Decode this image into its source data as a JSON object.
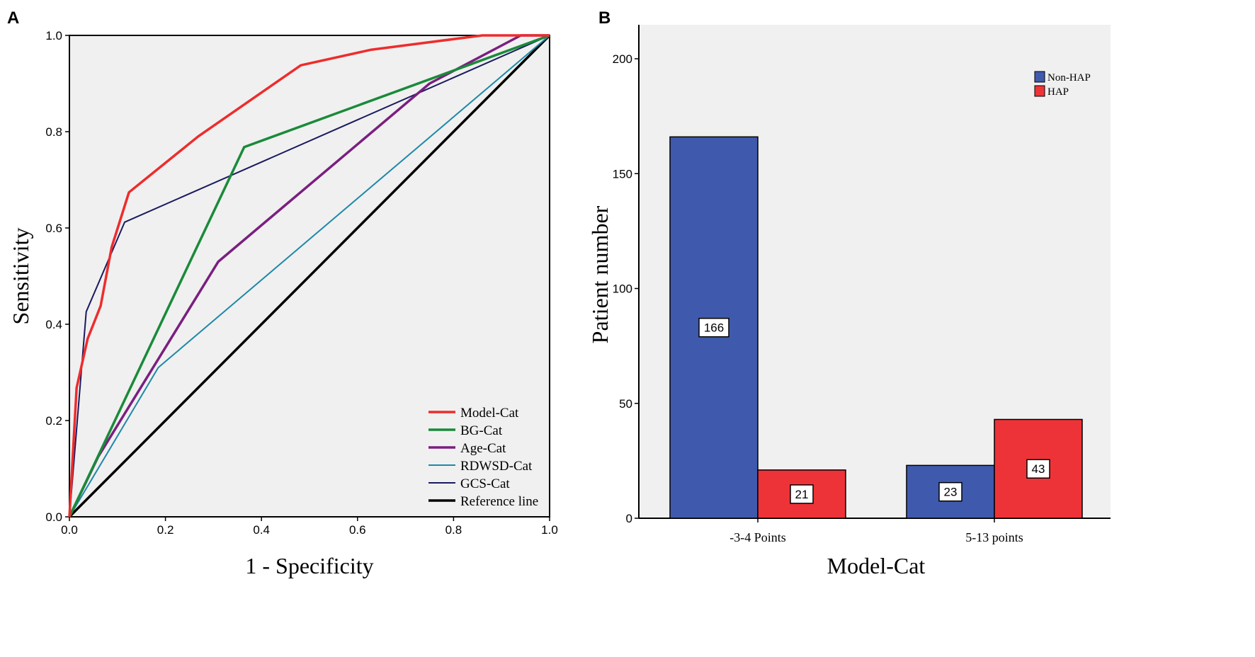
{
  "chart_data": [
    {
      "panel": "A",
      "type": "line",
      "xlabel": "1 - Specificity",
      "ylabel": "Sensitivity",
      "xlim": [
        0,
        1
      ],
      "ylim": [
        0,
        1
      ],
      "xticks": [
        "0.0",
        "0.2",
        "0.4",
        "0.6",
        "0.8",
        "1.0"
      ],
      "yticks": [
        "0.0",
        "0.2",
        "0.4",
        "0.6",
        "0.8",
        "1.0"
      ],
      "legend_position": "bottom-right",
      "background": "#f0f0f0",
      "series": [
        {
          "name": "Model-Cat",
          "color": "#ee2c2c",
          "width": 3.5,
          "points": [
            [
              0,
              0
            ],
            [
              0.015,
              0.268
            ],
            [
              0.038,
              0.37
            ],
            [
              0.065,
              0.438
            ],
            [
              0.088,
              0.56
            ],
            [
              0.124,
              0.674
            ],
            [
              0.268,
              0.79
            ],
            [
              0.482,
              0.938
            ],
            [
              0.627,
              0.97
            ],
            [
              0.86,
              1.0
            ],
            [
              1,
              1
            ]
          ]
        },
        {
          "name": "BG-Cat",
          "color": "#1a8a3a",
          "width": 3.5,
          "points": [
            [
              0,
              0
            ],
            [
              0.364,
              0.768
            ],
            [
              1,
              1
            ]
          ]
        },
        {
          "name": "Age-Cat",
          "color": "#7a1f7f",
          "width": 3.5,
          "points": [
            [
              0,
              0
            ],
            [
              0.06,
              0.125
            ],
            [
              0.31,
              0.53
            ],
            [
              0.75,
              0.9
            ],
            [
              0.94,
              1.0
            ],
            [
              1,
              1
            ]
          ]
        },
        {
          "name": "RDWSD-Cat",
          "color": "#1f88a8",
          "width": 2,
          "points": [
            [
              0,
              0
            ],
            [
              0.185,
              0.31
            ],
            [
              1,
              1
            ]
          ]
        },
        {
          "name": "GCS-Cat",
          "color": "#1a1a60",
          "width": 2,
          "points": [
            [
              0,
              0
            ],
            [
              0.035,
              0.426
            ],
            [
              0.115,
              0.612
            ],
            [
              1,
              1
            ]
          ]
        },
        {
          "name": "Reference line",
          "color": "#000000",
          "width": 3.5,
          "points": [
            [
              0,
              0
            ],
            [
              1,
              1
            ]
          ]
        }
      ]
    },
    {
      "panel": "B",
      "type": "bar",
      "xlabel": "Model-Cat",
      "ylabel": "Patient number",
      "categories": [
        "-3-4 Points",
        "5-13 points"
      ],
      "ylim": [
        0,
        214
      ],
      "yticks": [
        "0",
        "50",
        "100",
        "150",
        "200"
      ],
      "legend_position": "top-right",
      "background": "#f0f0f0",
      "series": [
        {
          "name": "Non-HAP",
          "color": "#3f5aad",
          "values": [
            166,
            23
          ]
        },
        {
          "name": "HAP",
          "color": "#ee3338",
          "values": [
            21,
            43
          ]
        }
      ]
    }
  ]
}
